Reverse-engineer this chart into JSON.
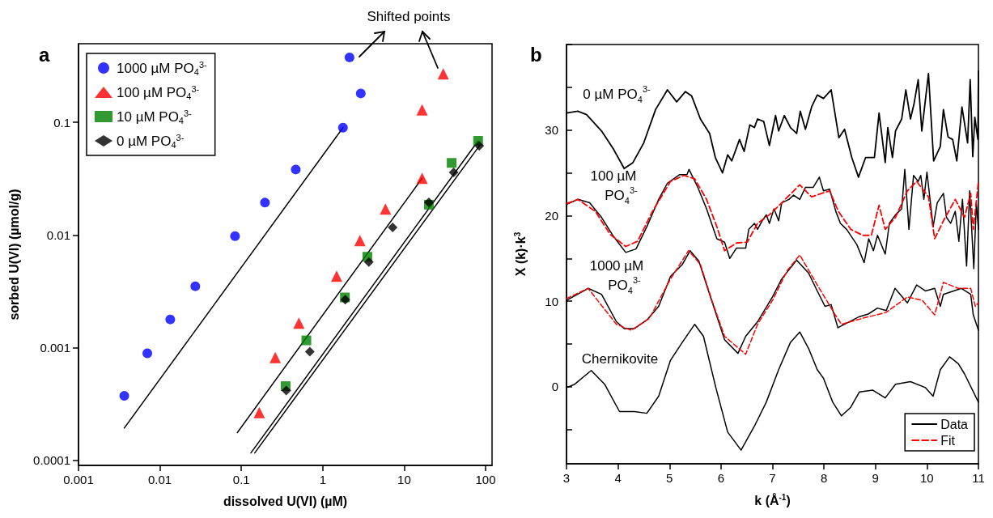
{
  "chart_data": [
    {
      "type": "scatter",
      "title": "a",
      "xlabel": "dissolved U(VI) (µM)",
      "ylabel": "sorbed U(VI) (µmol/g)",
      "log": "xy",
      "xlim": [
        0.001,
        120
      ],
      "ylim": [
        9e-05,
        0.5
      ],
      "xticks": [
        0.001,
        0.01,
        0.1,
        1,
        10,
        100
      ],
      "yticks": [
        0.0001,
        0.001,
        0.01,
        0.1
      ],
      "grid": false,
      "legend": "top left",
      "annotations": [
        "Shifted points"
      ],
      "series": [
        {
          "name": "1000 µM PO$_{4}$$^{3-}$",
          "color": "#0000ff",
          "marker": "circle",
          "x": [
            0.00365,
            0.007,
            0.0134,
            0.0272,
            0.0836,
            0.195,
            0.466,
            1.77,
            2.93,
            2.13
          ],
          "values": [
            0.000373,
            0.000891,
            0.00178,
            0.00351,
            0.00977,
            0.0194,
            0.0382,
            0.0898,
            0.181,
            0.378
          ]
        },
        {
          "name": "100 µM PO$_{4}$$^{3-}$",
          "color": "#ff0000",
          "marker": "triangle",
          "x": [
            0.166,
            0.261,
            0.509,
            1.48,
            2.86,
            5.89,
            16.6,
            16.6,
            30.2
          ],
          "values": [
            0.000265,
            0.000815,
            0.00165,
            0.00431,
            0.00891,
            0.017,
            0.0319,
            0.129,
            0.27
          ]
        },
        {
          "name": "10 µM PO$_{4}$$^{3-}$",
          "color": "#008000",
          "marker": "square",
          "x": [
            0.35,
            0.629,
            1.87,
            3.53,
            20.1,
            38.3,
            80.9
          ],
          "values": [
            0.000455,
            0.00116,
            0.00279,
            0.00641,
            0.0186,
            0.0437,
            0.0686
          ]
        },
        {
          "name": "0 µM PO$_{4}$$^{3-}$",
          "color": "#000000",
          "marker": "diamond",
          "x": [
            0.356,
            0.693,
            1.89,
            3.68,
            7.22,
            20.1,
            40.5,
            83.6
          ],
          "values": [
            0.000416,
            0.000919,
            0.00267,
            0.00575,
            0.0117,
            0.0195,
            0.036,
            0.0618
          ]
        },
        {
          "type": "line",
          "color": "#000000",
          "marker": "none",
          "x": [
            0.00365,
            1.77
          ],
          "values": [
            0.000193,
            0.0898
          ]
        },
        {
          "type": "line",
          "color": "#000000",
          "marker": "none",
          "x": [
            0.0893,
            16.6
          ],
          "values": [
            0.000176,
            0.0319
          ]
        },
        {
          "type": "line",
          "color": "#000000",
          "marker": "none",
          "x": [
            0.131,
            80.9
          ],
          "values": [
            0.000116,
            0.0686
          ]
        },
        {
          "type": "line",
          "color": "#000000",
          "marker": "none",
          "x": [
            0.146,
            83.6
          ],
          "values": [
            0.000116,
            0.0618
          ]
        }
      ]
    },
    {
      "type": "line",
      "title": "b",
      "xlabel": "k (Å$^{-1}$)",
      "ylabel": "X (k)·k$^{3}$",
      "xlim": [
        3,
        11
      ],
      "ylim": [
        -9,
        40
      ],
      "xticks": [
        3,
        4,
        5,
        6,
        7,
        8,
        9,
        10,
        11
      ],
      "yticks": [
        {
          "value": -5,
          "label": null
        },
        0,
        {
          "value": 5,
          "label": null
        },
        10,
        {
          "value": 15,
          "label": null
        },
        20,
        {
          "value": 25,
          "label": null
        },
        30,
        {
          "value": 35,
          "label": null
        },
        {
          "value": 40,
          "label": null
        }
      ],
      "grid": false,
      "legend": "bottom right",
      "marker": "none",
      "annotations": [
        "0 µM PO$_{4}$$^{3-}$",
        "100 µM\n    PO$_{4}$$^{3-}$",
        "1000 µM\n    PO$_{4}$$^{3-}$",
        "Chernikovite"
      ],
      "series": [
        {
          "name": "Data",
          "color": "#000000",
          "line_style": "solid",
          "x": [
            3,
            3.22,
            3.39,
            3.68,
            3.91,
            4.12,
            4.29,
            4.5,
            4.73,
            4.96,
            5.14,
            5.31,
            5.43,
            5.6,
            5.78,
            5.89,
            6.03,
            6.13,
            6.21,
            6.36,
            6.45,
            6.56,
            6.65,
            6.71,
            6.83,
            6.94,
            7.06,
            7.12,
            7.23,
            7.35,
            7.47,
            7.54,
            7.64,
            7.76,
            7.87,
            7.99,
            8.14,
            8.29,
            8.4,
            8.54,
            8.67,
            8.81,
            8.98,
            9.07,
            9.19,
            9.24,
            9.33,
            9.39,
            9.51,
            9.59,
            9.68,
            9.75,
            9.83,
            9.9,
            10.03,
            10.13,
            10.26,
            10.32,
            10.41,
            10.5,
            10.58,
            10.68,
            10.79,
            10.84,
            10.89,
            10.93,
            10.99,
            11
          ],
          "values": [
            32,
            32.2,
            31.8,
            29.9,
            27.8,
            25.5,
            26.2,
            28.5,
            32.4,
            34.7,
            33.3,
            34.5,
            34,
            31.3,
            29.6,
            26.8,
            25,
            27.1,
            26.4,
            28.9,
            27.5,
            30.6,
            30.3,
            31.3,
            31,
            28.2,
            31.7,
            29.9,
            31.7,
            30.3,
            29.6,
            32.2,
            30.1,
            32.7,
            34.1,
            33.7,
            34.7,
            29.1,
            30.1,
            26.8,
            24.5,
            26.8,
            26.8,
            32,
            26.2,
            30.3,
            26.8,
            29.9,
            31.3,
            34.7,
            31.3,
            33.1,
            35.9,
            29.9,
            36.6,
            26.4,
            28.1,
            32.4,
            29.2,
            28.9,
            26.4,
            32.7,
            28.5,
            35.9,
            26.9,
            31.5,
            28.9,
            36.9
          ]
        },
        {
          "color": "#000000",
          "line_style": "solid",
          "x": [
            3,
            3.22,
            3.45,
            3.68,
            3.91,
            4.15,
            4.35,
            4.56,
            4.79,
            4.96,
            5.2,
            5.34,
            5.38,
            5.55,
            5.72,
            5.92,
            6.07,
            6.17,
            6.3,
            6.48,
            6.54,
            6.65,
            6.71,
            6.8,
            6.88,
            6.94,
            7.03,
            7.12,
            7.18,
            7.32,
            7.41,
            7.53,
            7.64,
            7.79,
            7.91,
            7.99,
            8.11,
            8.23,
            8.32,
            8.44,
            8.64,
            8.78,
            8.87,
            8.96,
            9.04,
            9.19,
            9.27,
            9.39,
            9.51,
            9.57,
            9.65,
            9.74,
            9.83,
            9.88,
            9.94,
            10,
            10.12,
            10.2,
            10.32,
            10.38,
            10.46,
            10.55,
            10.62,
            10.69,
            10.77,
            10.83,
            10.91,
            10.96,
            11
          ],
          "values": [
            21.3,
            21.9,
            21.5,
            19.8,
            17.6,
            15.7,
            16.1,
            18.7,
            21.9,
            23.8,
            24.8,
            24.8,
            25.4,
            23.3,
            20.8,
            17.3,
            16.9,
            15,
            16.2,
            16.2,
            18.4,
            19.1,
            18.4,
            19.4,
            20.1,
            19.1,
            20.8,
            19.4,
            21.5,
            21.9,
            22.4,
            21.9,
            23.3,
            23.3,
            24.5,
            22.9,
            23.1,
            20.5,
            19.1,
            18.4,
            16.6,
            14.5,
            17.3,
            15.9,
            17.7,
            15.5,
            19.1,
            20.1,
            20.8,
            25.4,
            18.4,
            24.7,
            24,
            24.7,
            21.9,
            25.1,
            18.7,
            21.5,
            22.6,
            19.8,
            19.1,
            20.5,
            17,
            21.9,
            14.1,
            22.9,
            13.8,
            21.5,
            18.4
          ]
        },
        {
          "name": "Fit",
          "color": "#ff0000",
          "line_style": "dashed",
          "x": [
            3,
            3.22,
            3.56,
            3.85,
            4.15,
            4.38,
            4.67,
            5.02,
            5.28,
            5.49,
            5.72,
            5.92,
            6.07,
            6.3,
            6.51,
            6.71,
            6.94,
            7.18,
            7.53,
            7.76,
            8.11,
            8.28,
            8.52,
            8.75,
            8.92,
            9.07,
            9.19,
            9.39,
            9.62,
            9.8,
            10.03,
            10.15,
            10.32,
            10.55,
            10.73,
            10.85,
            10.9,
            11
          ],
          "values": [
            21.4,
            21.9,
            20.5,
            17.8,
            16.4,
            17,
            20.5,
            24,
            24.7,
            24.3,
            21.9,
            18.7,
            15.9,
            16.8,
            16.9,
            19.1,
            20.1,
            21.5,
            23.6,
            22.2,
            22.9,
            20.5,
            18.4,
            17.7,
            17.7,
            21.2,
            18.4,
            19.8,
            22.9,
            24,
            22.2,
            17.3,
            19.4,
            21.9,
            19.8,
            22.6,
            18.4,
            24
          ]
        },
        {
          "color": "#000000",
          "line_style": "solid",
          "x": [
            3,
            3.42,
            3.68,
            3.97,
            4.12,
            4.32,
            4.56,
            4.79,
            5.02,
            5.25,
            5.4,
            5.57,
            5.78,
            6.07,
            6.33,
            6.48,
            6.71,
            7,
            7.18,
            7.47,
            7.7,
            7.87,
            8.02,
            8.14,
            8.27,
            8.46,
            8.69,
            8.86,
            9.04,
            9.21,
            9.38,
            9.62,
            9.8,
            9.97,
            10.15,
            10.26,
            10.32,
            10.67,
            10.85,
            10.9,
            11
          ],
          "values": [
            10.1,
            11.5,
            10.8,
            7.6,
            6.8,
            6.8,
            7.8,
            9.4,
            12.9,
            14.3,
            15.9,
            14.7,
            10.8,
            5.5,
            3.9,
            5.9,
            7.6,
            10.5,
            12.6,
            14.8,
            13.3,
            11.2,
            9.4,
            9.6,
            6.9,
            7.5,
            8.2,
            8.5,
            9.2,
            8.9,
            11.5,
            9.8,
            11.9,
            11.2,
            11.5,
            9.4,
            10.8,
            11.5,
            10.8,
            8.4,
            6.6
          ]
        },
        {
          "color": "#ff0000",
          "line_style": "dashed",
          "x": [
            3,
            3.42,
            3.97,
            4.26,
            4.61,
            5.02,
            5.37,
            5.6,
            5.84,
            6.07,
            6.48,
            6.71,
            7,
            7.29,
            7.53,
            7.87,
            8.22,
            8.34,
            8.75,
            9.21,
            9.62,
            9.91,
            10.15,
            10.32,
            10.61,
            10.85,
            10.94,
            11
          ],
          "values": [
            10.3,
            11.5,
            7.3,
            6.6,
            8,
            12.6,
            15.9,
            14.3,
            9.8,
            5.9,
            3.8,
            7.3,
            10.1,
            13.6,
            15.4,
            11.9,
            8.4,
            7.3,
            8,
            8.7,
            10.5,
            10.1,
            8.4,
            12.2,
            11.5,
            11.5,
            9.4,
            9.8
          ]
        },
        {
          "color": "#000000",
          "line_style": "solid",
          "x": [
            3,
            3.16,
            3.48,
            3.74,
            4.03,
            4.32,
            4.56,
            4.79,
            5.02,
            5.25,
            5.49,
            5.66,
            5.9,
            6.13,
            6.39,
            6.65,
            6.88,
            7.12,
            7.35,
            7.53,
            7.7,
            7.87,
            7.99,
            8.17,
            8.34,
            8.52,
            8.69,
            8.95,
            9.19,
            9.39,
            9.68,
            9.97,
            10.12,
            10.26,
            10.44,
            10.61,
            10.73,
            11
          ],
          "values": [
            -0.1,
            0.3,
            1.9,
            0.3,
            -2.9,
            -2.9,
            -3.1,
            -1.1,
            3.1,
            5.2,
            7.3,
            5.9,
            -0.1,
            -5.3,
            -7.4,
            -4.6,
            -1.8,
            2,
            5.2,
            6.4,
            4.5,
            2,
            1,
            -1.8,
            -3.4,
            -2.4,
            -0.6,
            -0.4,
            -1.3,
            0.3,
            0.6,
            -0.1,
            -1.1,
            2,
            3.5,
            2.7,
            1.5,
            -1.8
          ]
        }
      ]
    }
  ]
}
